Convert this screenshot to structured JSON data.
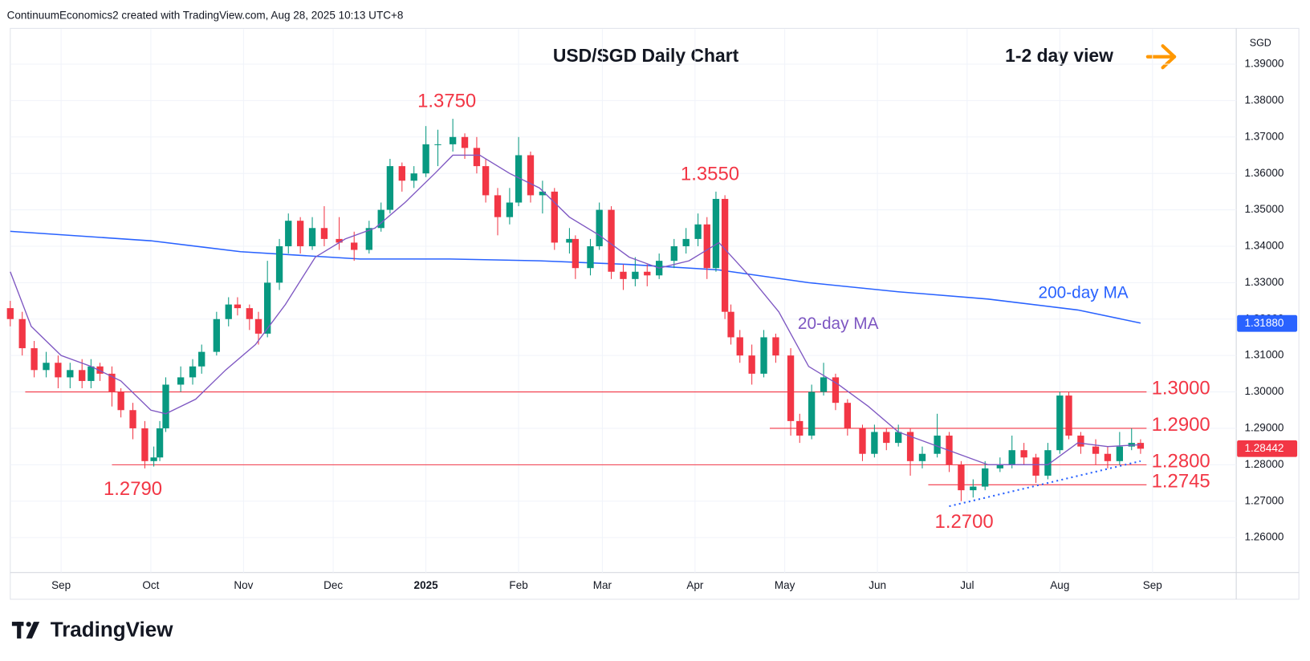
{
  "header": "ContinuumEconomics2 created with TradingView.com, Aug 28, 2025 10:13 UTC+8",
  "brand": "TradingView",
  "chart_data": {
    "type": "candlestick",
    "title": "USD/SGD Daily Chart",
    "subtitle": "1-2 day view",
    "currency": "SGD",
    "x": [
      -17,
      -13,
      -9,
      -5,
      -1,
      3,
      7,
      10,
      13,
      17,
      20,
      24,
      28,
      31,
      33,
      35,
      40,
      44,
      47,
      52,
      56,
      59,
      63,
      66,
      69,
      73,
      76,
      80,
      84,
      88,
      93,
      98,
      103,
      107,
      110,
      114,
      118,
      122,
      126,
      131,
      135,
      139,
      142,
      146,
      150,
      153,
      157,
      161,
      165,
      170,
      172,
      177,
      180,
      184,
      188,
      192,
      196,
      200,
      205,
      209,
      213,
      216,
      219,
      222,
      224,
      227,
      231,
      235,
      239,
      244,
      247,
      251,
      255,
      259,
      263,
      268,
      272,
      276,
      280,
      284,
      288,
      293,
      297,
      301,
      305,
      309,
      314,
      318,
      322,
      326,
      330,
      334,
      337,
      341,
      346,
      350,
      354,
      358,
      361
    ],
    "open": [
      1.323,
      1.32,
      1.312,
      1.306,
      1.308,
      1.304,
      1.306,
      1.303,
      1.307,
      1.305,
      1.3,
      1.295,
      1.29,
      1.281,
      1.282,
      1.29,
      1.302,
      1.304,
      1.307,
      1.311,
      1.32,
      1.324,
      1.323,
      1.32,
      1.316,
      1.33,
      1.34,
      1.347,
      1.34,
      1.345,
      1.342,
      1.341,
      1.339,
      1.345,
      1.35,
      1.362,
      1.358,
      1.36,
      1.368,
      1.368,
      1.37,
      1.367,
      1.362,
      1.354,
      1.348,
      1.352,
      1.365,
      1.354,
      1.355,
      1.341,
      1.342,
      1.334,
      1.34,
      1.35,
      1.333,
      1.331,
      1.333,
      1.332,
      1.336,
      1.34,
      1.342,
      1.346,
      1.334,
      1.353,
      1.322,
      1.315,
      1.31,
      1.305,
      1.315,
      1.31,
      1.292,
      1.288,
      1.3,
      1.304,
      1.297,
      1.29,
      1.283,
      1.289,
      1.286,
      1.289,
      1.281,
      1.283,
      1.288,
      1.28,
      1.273,
      1.274,
      1.279,
      1.28,
      1.284,
      1.282,
      1.277,
      1.284,
      1.299,
      1.288,
      1.285,
      1.283,
      1.281,
      1.285,
      1.286
    ],
    "high": [
      1.325,
      1.322,
      1.314,
      1.311,
      1.31,
      1.308,
      1.309,
      1.309,
      1.308,
      1.307,
      1.301,
      1.297,
      1.292,
      1.285,
      1.292,
      1.304,
      1.307,
      1.309,
      1.313,
      1.322,
      1.326,
      1.326,
      1.324,
      1.322,
      1.336,
      1.342,
      1.349,
      1.348,
      1.348,
      1.351,
      1.348,
      1.344,
      1.347,
      1.352,
      1.364,
      1.363,
      1.362,
      1.373,
      1.372,
      1.375,
      1.371,
      1.37,
      1.364,
      1.356,
      1.356,
      1.37,
      1.366,
      1.358,
      1.356,
      1.345,
      1.343,
      1.342,
      1.352,
      1.351,
      1.335,
      1.337,
      1.335,
      1.338,
      1.342,
      1.345,
      1.349,
      1.348,
      1.355,
      1.354,
      1.324,
      1.317,
      1.313,
      1.317,
      1.316,
      1.312,
      1.294,
      1.302,
      1.308,
      1.305,
      1.298,
      1.291,
      1.291,
      1.29,
      1.291,
      1.29,
      1.285,
      1.294,
      1.289,
      1.281,
      1.276,
      1.281,
      1.282,
      1.288,
      1.286,
      1.283,
      1.286,
      1.3,
      1.3,
      1.289,
      1.287,
      1.285,
      1.289,
      1.29,
      1.287
    ],
    "low": [
      1.318,
      1.31,
      1.304,
      1.304,
      1.301,
      1.301,
      1.301,
      1.301,
      1.303,
      1.296,
      1.293,
      1.287,
      1.279,
      1.2795,
      1.281,
      1.289,
      1.3,
      1.302,
      1.305,
      1.31,
      1.318,
      1.321,
      1.317,
      1.313,
      1.315,
      1.328,
      1.338,
      1.338,
      1.339,
      1.34,
      1.339,
      1.336,
      1.338,
      1.344,
      1.349,
      1.355,
      1.356,
      1.359,
      1.362,
      1.366,
      1.364,
      1.36,
      1.352,
      1.343,
      1.346,
      1.351,
      1.352,
      1.349,
      1.339,
      1.338,
      1.331,
      1.332,
      1.339,
      1.331,
      1.328,
      1.329,
      1.329,
      1.331,
      1.334,
      1.338,
      1.34,
      1.331,
      1.333,
      1.32,
      1.313,
      1.308,
      1.302,
      1.304,
      1.308,
      1.288,
      1.286,
      1.287,
      1.299,
      1.295,
      1.288,
      1.281,
      1.282,
      1.284,
      1.285,
      1.277,
      1.279,
      1.282,
      1.278,
      1.27,
      1.271,
      1.273,
      1.278,
      1.279,
      1.28,
      1.275,
      1.276,
      1.283,
      1.287,
      1.283,
      1.28,
      1.279,
      1.28,
      1.284,
      1.283
    ],
    "close": [
      1.32,
      1.312,
      1.306,
      1.308,
      1.304,
      1.306,
      1.303,
      1.307,
      1.305,
      1.3,
      1.295,
      1.29,
      1.281,
      1.282,
      1.29,
      1.302,
      1.304,
      1.307,
      1.311,
      1.32,
      1.324,
      1.323,
      1.32,
      1.316,
      1.33,
      1.34,
      1.347,
      1.34,
      1.345,
      1.342,
      1.341,
      1.339,
      1.345,
      1.35,
      1.362,
      1.358,
      1.36,
      1.368,
      1.368,
      1.37,
      1.367,
      1.362,
      1.354,
      1.348,
      1.352,
      1.365,
      1.354,
      1.355,
      1.341,
      1.342,
      1.334,
      1.34,
      1.35,
      1.333,
      1.331,
      1.333,
      1.332,
      1.336,
      1.34,
      1.342,
      1.346,
      1.334,
      1.353,
      1.322,
      1.315,
      1.31,
      1.305,
      1.315,
      1.31,
      1.292,
      1.288,
      1.3,
      1.304,
      1.297,
      1.29,
      1.283,
      1.289,
      1.286,
      1.289,
      1.281,
      1.283,
      1.288,
      1.28,
      1.273,
      1.274,
      1.279,
      1.28,
      1.284,
      1.282,
      1.277,
      1.284,
      1.299,
      1.288,
      1.285,
      1.283,
      1.281,
      1.285,
      1.286,
      1.2844
    ],
    "up_color": "#089981",
    "down_color": "#f23645",
    "series": [
      {
        "name": "20-day MA",
        "color": "#7e57c2",
        "x": [
          -17,
          -10,
          0,
          10,
          20,
          30,
          35,
          45,
          55,
          65,
          75,
          85,
          95,
          105,
          115,
          125,
          131,
          140,
          150,
          160,
          170,
          180,
          190,
          200,
          210,
          220,
          230,
          240,
          250,
          260,
          270,
          280,
          290,
          300,
          310,
          320,
          330,
          340,
          350,
          361
        ],
        "values": [
          1.333,
          1.318,
          1.31,
          1.307,
          1.303,
          1.295,
          1.294,
          1.298,
          1.306,
          1.313,
          1.324,
          1.337,
          1.342,
          1.345,
          1.352,
          1.36,
          1.365,
          1.365,
          1.36,
          1.356,
          1.348,
          1.343,
          1.337,
          1.334,
          1.336,
          1.341,
          1.332,
          1.322,
          1.307,
          1.302,
          1.296,
          1.289,
          1.286,
          1.283,
          1.28,
          1.28,
          1.28,
          1.286,
          1.285,
          1.2855
        ]
      },
      {
        "name": "200-day MA",
        "color": "#2962ff",
        "x": [
          -17,
          30,
          60,
          100,
          130,
          160,
          190,
          220,
          250,
          280,
          310,
          340,
          361
        ],
        "values": [
          1.3441,
          1.3415,
          1.3385,
          1.3365,
          1.3365,
          1.336,
          1.335,
          1.3335,
          1.33,
          1.3275,
          1.3255,
          1.3225,
          1.3189
        ],
        "price_tag": {
          "value": 1.3188,
          "label": "1.31880"
        }
      }
    ],
    "last_price": 1.28442,
    "trendline": {
      "x": [
        297,
        361
      ],
      "values": [
        1.2686,
        1.281
      ],
      "color": "#2962ff"
    },
    "levels": [
      {
        "value": 1.3,
        "label": "1.3000",
        "x": [
          -12,
          363
        ]
      },
      {
        "value": 1.29,
        "label": "1.2900",
        "x": [
          237,
          363
        ]
      },
      {
        "value": 1.28,
        "label": "1.2800",
        "x": [
          17,
          363
        ]
      },
      {
        "value": 1.2745,
        "label": "1.2745",
        "x": [
          290,
          363
        ]
      }
    ],
    "level_color": "#f23645",
    "peaks": [
      {
        "x": 129,
        "value": 1.375,
        "label": "1.3750"
      },
      {
        "x": 217,
        "value": 1.355,
        "label": "1.3550"
      }
    ],
    "troughs": [
      {
        "x": 24,
        "value": 1.279,
        "label": "1.2790"
      },
      {
        "x": 302,
        "value": 1.27,
        "label": "1.2700"
      }
    ],
    "xlim": [
      -17,
      393
    ],
    "ylim": [
      1.2504,
      1.3996
    ],
    "xticks": [
      {
        "value": 0,
        "label": "Sep"
      },
      {
        "value": 30,
        "label": "Oct"
      },
      {
        "value": 61,
        "label": "Nov"
      },
      {
        "value": 91,
        "label": "Dec"
      },
      {
        "value": 122,
        "label": "2025"
      },
      {
        "value": 153,
        "label": "Feb"
      },
      {
        "value": 181,
        "label": "Mar"
      },
      {
        "value": 212,
        "label": "Apr"
      },
      {
        "value": 242,
        "label": "May"
      },
      {
        "value": 273,
        "label": "Jun"
      },
      {
        "value": 303,
        "label": "Jul"
      },
      {
        "value": 334,
        "label": "Aug"
      },
      {
        "value": 365,
        "label": "Sep"
      }
    ],
    "yticks": [
      {
        "value": 1.26,
        "label": "1.26000"
      },
      {
        "value": 1.27,
        "label": "1.27000"
      },
      {
        "value": 1.28,
        "label": "1.28000"
      },
      {
        "value": 1.29,
        "label": "1.29000"
      },
      {
        "value": 1.3,
        "label": "1.30000"
      },
      {
        "value": 1.31,
        "label": "1.31000"
      },
      {
        "value": 1.32,
        "label": "1.32000"
      },
      {
        "value": 1.33,
        "label": "1.33000"
      },
      {
        "value": 1.34,
        "label": "1.34000"
      },
      {
        "value": 1.35,
        "label": "1.35000"
      },
      {
        "value": 1.36,
        "label": "1.36000"
      },
      {
        "value": 1.37,
        "label": "1.37000"
      },
      {
        "value": 1.38,
        "label": "1.38000"
      },
      {
        "value": 1.39,
        "label": "1.39000"
      }
    ],
    "grid": true
  }
}
